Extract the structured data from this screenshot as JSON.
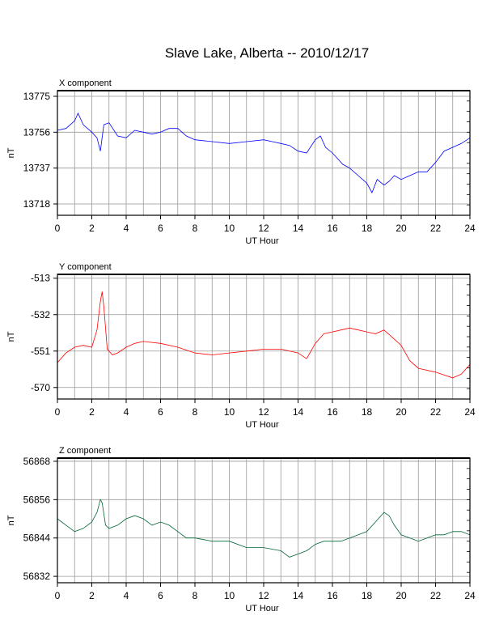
{
  "title": "Slave Lake, Alberta -- 2010/12/17",
  "chart_data": [
    {
      "type": "line",
      "title": "X component",
      "xlabel": "UT Hour",
      "ylabel": "nT",
      "xlim": [
        0,
        24
      ],
      "ylim": [
        13712,
        13778
      ],
      "xticks": [
        0,
        2,
        4,
        6,
        8,
        10,
        12,
        14,
        16,
        18,
        20,
        22,
        24
      ],
      "yticks": [
        13718,
        13737,
        13756,
        13775
      ],
      "grid": true,
      "color": "#0000ff",
      "x": [
        0,
        0.5,
        1,
        1.2,
        1.5,
        2,
        2.3,
        2.5,
        2.7,
        3,
        3.5,
        4,
        4.5,
        5,
        5.5,
        6,
        6.5,
        7,
        7.5,
        8,
        9,
        10,
        11,
        12,
        12.5,
        13,
        13.5,
        14,
        14.5,
        15,
        15.3,
        15.6,
        16,
        16.3,
        16.6,
        17,
        17.5,
        18,
        18.3,
        18.6,
        19,
        19.3,
        19.6,
        20,
        20.5,
        21,
        21.5,
        22,
        22.5,
        23,
        23.5,
        24
      ],
      "y": [
        13757,
        13758,
        13762,
        13766,
        13760,
        13756,
        13753,
        13746,
        13760,
        13761,
        13754,
        13753,
        13757,
        13756,
        13755,
        13756,
        13758,
        13758,
        13754,
        13752,
        13751,
        13750,
        13751,
        13752,
        13751,
        13750,
        13749,
        13746,
        13745,
        13752,
        13754,
        13748,
        13745,
        13742,
        13739,
        13737,
        13733,
        13729,
        13724,
        13731,
        13728,
        13730,
        13733,
        13731,
        13733,
        13735,
        13735,
        13740,
        13746,
        13748,
        13750,
        13753
      ]
    },
    {
      "type": "line",
      "title": "Y component",
      "xlabel": "UT Hour",
      "ylabel": "nT",
      "xlim": [
        0,
        24
      ],
      "ylim": [
        -576,
        -511
      ],
      "xticks": [
        0,
        2,
        4,
        6,
        8,
        10,
        12,
        14,
        16,
        18,
        20,
        22,
        24
      ],
      "yticks": [
        -513,
        -532,
        -551,
        -570
      ],
      "grid": true,
      "color": "#ff0000",
      "x": [
        0,
        0.5,
        1,
        1.5,
        2,
        2.3,
        2.5,
        2.6,
        2.7,
        2.9,
        3.2,
        3.5,
        4,
        4.5,
        5,
        6,
        7,
        8,
        9,
        10,
        11,
        12,
        13,
        14,
        14.5,
        15,
        15.5,
        16,
        16.5,
        17,
        17.5,
        18,
        18.5,
        19,
        19.5,
        20,
        20.5,
        21,
        22,
        23,
        23.5,
        24
      ],
      "y": [
        -557,
        -552,
        -549,
        -548,
        -549,
        -540,
        -525,
        -520,
        -528,
        -550,
        -553,
        -552,
        -549,
        -547,
        -546,
        -547,
        -549,
        -552,
        -553,
        -552,
        -551,
        -550,
        -550,
        -552,
        -555,
        -547,
        -542,
        -541,
        -540,
        -539,
        -540,
        -541,
        -542,
        -540,
        -544,
        -548,
        -556,
        -560,
        -562,
        -565,
        -563,
        -558
      ]
    },
    {
      "type": "line",
      "title": "Z component",
      "xlabel": "UT Hour",
      "ylabel": "nT",
      "xlim": [
        0,
        24
      ],
      "ylim": [
        56830,
        56869
      ],
      "xticks": [
        0,
        2,
        4,
        6,
        8,
        10,
        12,
        14,
        16,
        18,
        20,
        22,
        24
      ],
      "yticks": [
        56832,
        56844,
        56856,
        56868
      ],
      "grid": true,
      "color": "#006633",
      "x": [
        0,
        0.5,
        1,
        1.5,
        2,
        2.3,
        2.5,
        2.6,
        2.8,
        3,
        3.5,
        4,
        4.5,
        5,
        5.5,
        6,
        6.5,
        7,
        7.5,
        8,
        9,
        10,
        11,
        12,
        13,
        13.5,
        14,
        14.5,
        15,
        15.5,
        16,
        16.5,
        17,
        17.5,
        18,
        18.5,
        19,
        19.3,
        19.6,
        20,
        20.5,
        21,
        21.5,
        22,
        22.5,
        23,
        23.5,
        24
      ],
      "y": [
        56850,
        56848,
        56846,
        56847,
        56849,
        56852,
        56856,
        56855,
        56848,
        56847,
        56848,
        56850,
        56851,
        56850,
        56848,
        56849,
        56848,
        56846,
        56844,
        56844,
        56843,
        56843,
        56841,
        56841,
        56840,
        56838,
        56839,
        56840,
        56842,
        56843,
        56843,
        56843,
        56844,
        56845,
        56846,
        56849,
        56852,
        56851,
        56848,
        56845,
        56844,
        56843,
        56844,
        56845,
        56845,
        56846,
        56846,
        56845
      ]
    }
  ]
}
